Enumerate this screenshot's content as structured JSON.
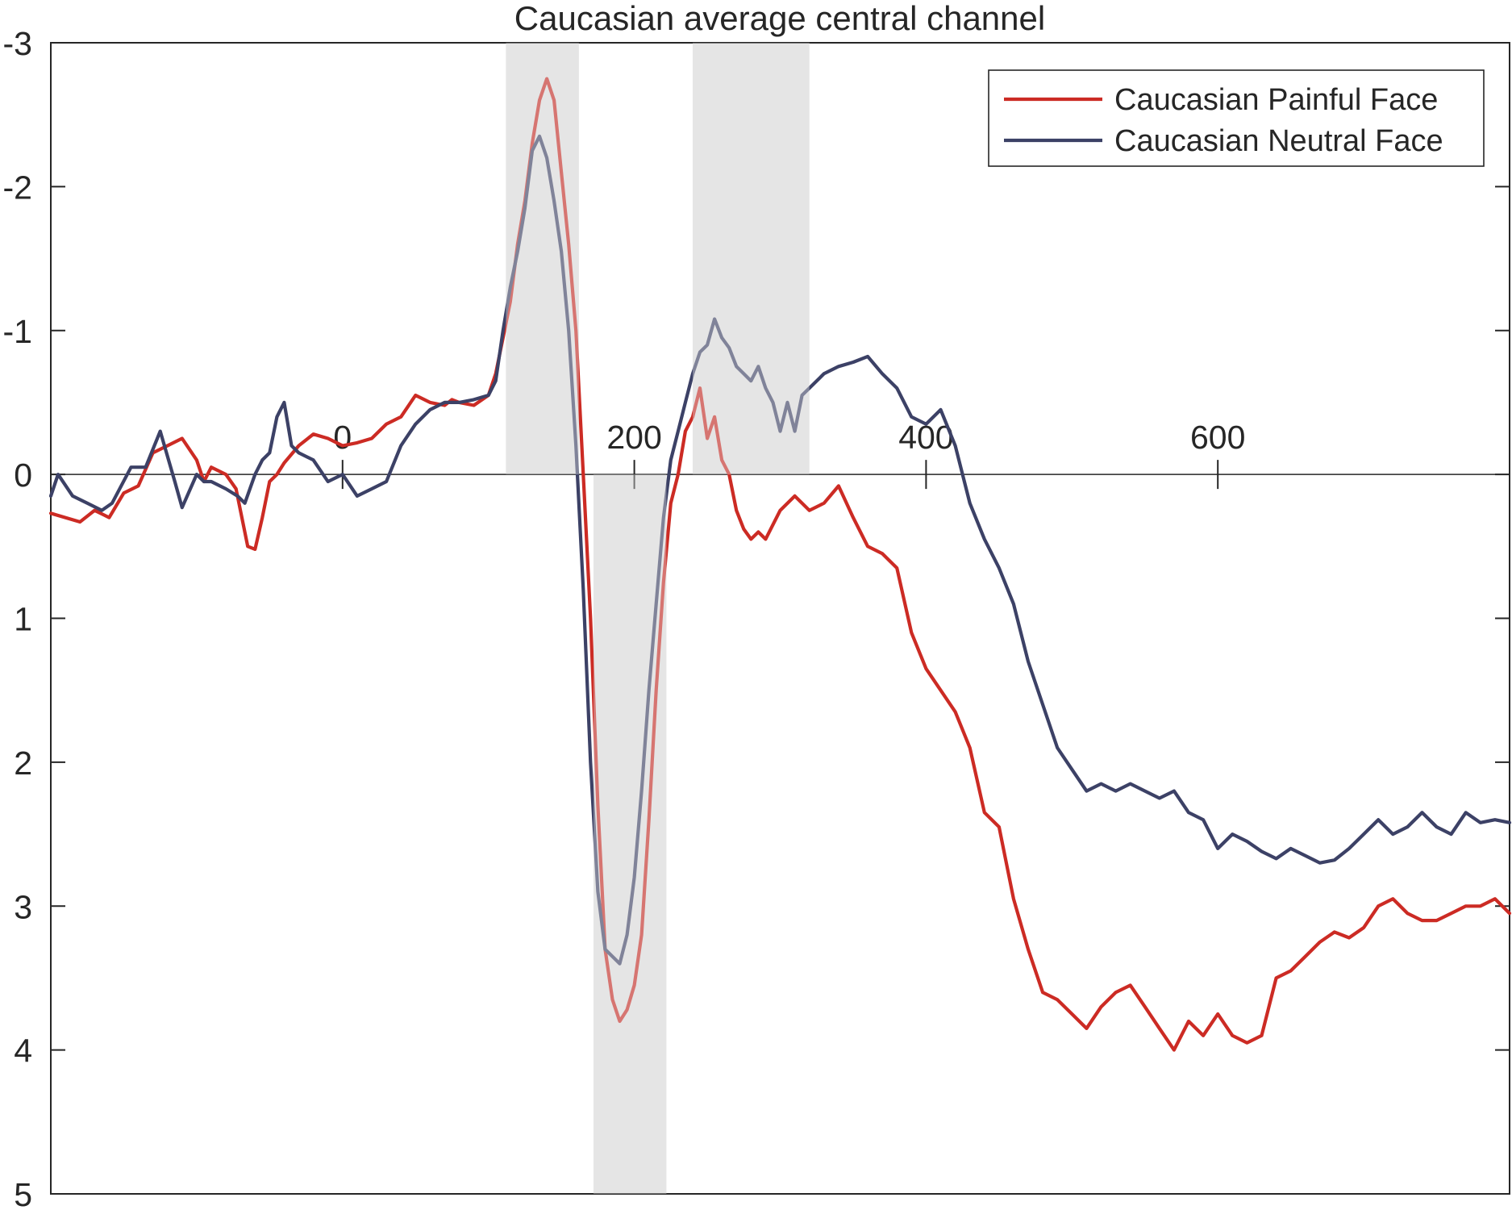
{
  "chart_data": {
    "type": "line",
    "title": "Caucasian average central channel",
    "xlabel": "",
    "ylabel": "",
    "xlim": [
      -200,
      800
    ],
    "ylim": [
      -3,
      5
    ],
    "y_reversed": true,
    "x_axis_at": 0,
    "xticks": [
      0,
      200,
      400,
      600
    ],
    "yticks": [
      -3,
      -2,
      -1,
      0,
      1,
      2,
      3,
      4,
      5
    ],
    "grid": false,
    "legend_position": "top-right",
    "highlight_windows": [
      [
        112,
        162
      ],
      [
        172,
        222
      ],
      [
        240,
        320
      ]
    ],
    "highlight_color": "#e5e5e5",
    "series": [
      {
        "name": "Caucasian Painful Face",
        "color": "#cc2b24",
        "x": [
          -200,
          -180,
          -170,
          -160,
          -150,
          -140,
          -130,
          -120,
          -110,
          -100,
          -95,
          -90,
          -80,
          -73,
          -65,
          -60,
          -55,
          -50,
          -45,
          -40,
          -30,
          -20,
          -10,
          0,
          10,
          20,
          30,
          40,
          50,
          60,
          70,
          75,
          80,
          90,
          100,
          105,
          110,
          115,
          120,
          125,
          130,
          135,
          140,
          145,
          150,
          155,
          160,
          165,
          170,
          175,
          180,
          185,
          190,
          195,
          200,
          205,
          210,
          215,
          220,
          225,
          230,
          235,
          240,
          245,
          250,
          255,
          260,
          265,
          270,
          275,
          280,
          285,
          290,
          300,
          310,
          320,
          330,
          340,
          350,
          360,
          370,
          380,
          390,
          400,
          410,
          420,
          430,
          440,
          450,
          460,
          470,
          480,
          490,
          500,
          510,
          520,
          530,
          540,
          550,
          560,
          570,
          580,
          590,
          600,
          610,
          620,
          630,
          640,
          650,
          660,
          670,
          680,
          690,
          700,
          710,
          720,
          730,
          740,
          750,
          760,
          770,
          780,
          790,
          800
        ],
        "values": [
          0.27,
          0.33,
          0.25,
          0.3,
          0.13,
          0.08,
          -0.15,
          -0.2,
          -0.25,
          -0.1,
          0.05,
          -0.05,
          0.0,
          0.1,
          0.5,
          0.52,
          0.3,
          0.05,
          0.0,
          -0.08,
          -0.2,
          -0.28,
          -0.25,
          -0.2,
          -0.22,
          -0.25,
          -0.35,
          -0.4,
          -0.55,
          -0.5,
          -0.48,
          -0.52,
          -0.5,
          -0.48,
          -0.55,
          -0.7,
          -0.95,
          -1.2,
          -1.6,
          -1.9,
          -2.3,
          -2.6,
          -2.75,
          -2.6,
          -2.1,
          -1.6,
          -1.0,
          0.0,
          1.0,
          2.3,
          3.3,
          3.65,
          3.8,
          3.72,
          3.55,
          3.2,
          2.4,
          1.5,
          0.75,
          0.2,
          0.0,
          -0.3,
          -0.4,
          -0.6,
          -0.25,
          -0.4,
          -0.1,
          0.0,
          0.25,
          0.38,
          0.45,
          0.4,
          0.45,
          0.25,
          0.15,
          0.25,
          0.2,
          0.08,
          0.3,
          0.5,
          0.55,
          0.65,
          1.1,
          1.35,
          1.5,
          1.65,
          1.9,
          2.35,
          2.45,
          2.95,
          3.3,
          3.6,
          3.65,
          3.75,
          3.85,
          3.7,
          3.6,
          3.55,
          3.7,
          3.85,
          4.0,
          3.8,
          3.9,
          3.75,
          3.9,
          3.95,
          3.9,
          3.5,
          3.45,
          3.35,
          3.25,
          3.18,
          3.22,
          3.15,
          3.0,
          2.95,
          3.05,
          3.1,
          3.1,
          3.05,
          3.0,
          3.0,
          2.95,
          3.05
        ]
      },
      {
        "name": "Caucasian Neutral Face",
        "color": "#3c4166",
        "x": [
          -200,
          -195,
          -185,
          -175,
          -165,
          -158,
          -145,
          -135,
          -125,
          -115,
          -110,
          -100,
          -95,
          -90,
          -80,
          -72,
          -67,
          -60,
          -55,
          -50,
          -45,
          -40,
          -35,
          -30,
          -20,
          -10,
          0,
          10,
          20,
          30,
          40,
          50,
          60,
          70,
          80,
          90,
          100,
          105,
          110,
          115,
          120,
          125,
          130,
          135,
          140,
          145,
          150,
          155,
          160,
          165,
          170,
          175,
          180,
          185,
          190,
          195,
          200,
          205,
          210,
          215,
          220,
          225,
          230,
          235,
          240,
          245,
          250,
          255,
          260,
          265,
          270,
          275,
          280,
          285,
          290,
          295,
          300,
          305,
          310,
          315,
          320,
          330,
          340,
          350,
          360,
          370,
          380,
          390,
          400,
          410,
          420,
          430,
          440,
          450,
          460,
          470,
          480,
          490,
          500,
          510,
          520,
          530,
          540,
          550,
          560,
          570,
          580,
          590,
          600,
          610,
          620,
          630,
          640,
          650,
          660,
          670,
          680,
          690,
          700,
          710,
          720,
          730,
          740,
          750,
          760,
          770,
          780,
          790,
          800
        ],
        "values": [
          0.15,
          0.0,
          0.15,
          0.2,
          0.25,
          0.2,
          -0.05,
          -0.05,
          -0.3,
          0.05,
          0.23,
          0.0,
          0.05,
          0.05,
          0.1,
          0.15,
          0.2,
          0.0,
          -0.1,
          -0.15,
          -0.4,
          -0.5,
          -0.2,
          -0.15,
          -0.1,
          0.05,
          0.0,
          0.15,
          0.1,
          0.05,
          -0.2,
          -0.35,
          -0.45,
          -0.5,
          -0.5,
          -0.52,
          -0.55,
          -0.65,
          -1.0,
          -1.3,
          -1.55,
          -1.85,
          -2.25,
          -2.35,
          -2.2,
          -1.9,
          -1.55,
          -1.0,
          -0.2,
          0.8,
          2.0,
          2.9,
          3.3,
          3.35,
          3.4,
          3.2,
          2.8,
          2.2,
          1.5,
          0.9,
          0.3,
          -0.1,
          -0.3,
          -0.5,
          -0.7,
          -0.85,
          -0.9,
          -1.08,
          -0.95,
          -0.88,
          -0.75,
          -0.7,
          -0.65,
          -0.75,
          -0.6,
          -0.5,
          -0.3,
          -0.5,
          -0.3,
          -0.55,
          -0.6,
          -0.7,
          -0.75,
          -0.78,
          -0.82,
          -0.7,
          -0.6,
          -0.4,
          -0.35,
          -0.45,
          -0.2,
          0.2,
          0.45,
          0.65,
          0.9,
          1.3,
          1.6,
          1.9,
          2.05,
          2.2,
          2.15,
          2.2,
          2.15,
          2.2,
          2.25,
          2.2,
          2.35,
          2.4,
          2.6,
          2.5,
          2.55,
          2.62,
          2.67,
          2.6,
          2.65,
          2.7,
          2.68,
          2.6,
          2.5,
          2.4,
          2.5,
          2.45,
          2.35,
          2.45,
          2.5,
          2.35,
          2.42,
          2.4,
          2.42
        ]
      }
    ]
  }
}
